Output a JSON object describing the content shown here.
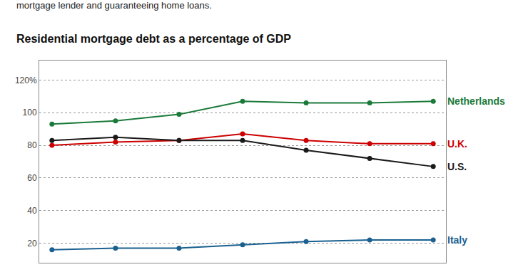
{
  "chart_data": {
    "type": "line",
    "title": "Residential mortgage debt as a percentage of GDP",
    "subtitle": "mortgage lender and guaranteeing home loans.",
    "x": [
      0,
      1,
      2,
      3,
      4,
      5,
      6
    ],
    "xlim": [
      -0.2,
      6.2
    ],
    "series": [
      {
        "name": "Netherlands",
        "color": "#1a7a3a",
        "values": [
          93,
          95,
          99,
          107,
          106,
          106,
          107
        ]
      },
      {
        "name": "U.K.",
        "color": "#cc0000",
        "values": [
          80,
          82,
          83,
          87,
          83,
          81,
          81
        ]
      },
      {
        "name": "U.S.",
        "color": "#1a1a1a",
        "values": [
          83,
          85,
          83,
          83,
          77,
          72,
          67
        ]
      },
      {
        "name": "Italy",
        "color": "#1a6090",
        "values": [
          16,
          17,
          17,
          19,
          21,
          22,
          22
        ]
      }
    ],
    "ylim": [
      8,
      132
    ],
    "yticks": [
      20,
      40,
      60,
      80,
      100,
      {
        "value": 120,
        "label": "120%"
      }
    ],
    "grid": true,
    "tick_labels": "y",
    "marker": "circle"
  }
}
